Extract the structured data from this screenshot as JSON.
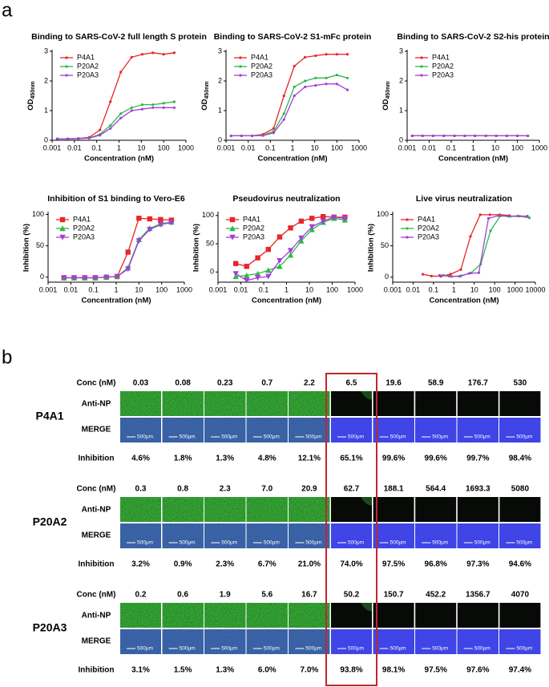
{
  "panel_labels": [
    "a",
    "b"
  ],
  "chart_data": [
    {
      "type": "line",
      "title": "Binding to SARS-CoV-2 full length S protein",
      "x_label": "Concentration (nM)",
      "y_label": {
        "main": "OD",
        "sub": "450nm"
      },
      "log_x": true,
      "xlim": [
        0.001,
        1000
      ],
      "xticks": [
        0.001,
        0.01,
        0.1,
        1,
        10,
        100,
        1000
      ],
      "ylim": [
        0,
        3
      ],
      "yticks": [
        0,
        1,
        2,
        3
      ],
      "legend": "upper left",
      "series": [
        {
          "name": "P4A1",
          "color": "#e8262a",
          "marker": "dot",
          "x": [
            0.0017,
            0.005,
            0.015,
            0.046,
            0.14,
            0.41,
            1.2,
            3.7,
            11,
            33,
            100,
            300
          ],
          "values": [
            0.05,
            0.05,
            0.06,
            0.1,
            0.35,
            1.3,
            2.3,
            2.8,
            2.9,
            2.95,
            2.9,
            2.95
          ]
        },
        {
          "name": "P20A2",
          "color": "#2db84a",
          "marker": "dot",
          "x": [
            0.0017,
            0.005,
            0.015,
            0.046,
            0.14,
            0.41,
            1.2,
            3.7,
            11,
            33,
            100,
            300
          ],
          "values": [
            0.05,
            0.05,
            0.06,
            0.08,
            0.2,
            0.5,
            0.9,
            1.1,
            1.2,
            1.2,
            1.25,
            1.3
          ]
        },
        {
          "name": "P20A3",
          "color": "#a43fd6",
          "marker": "dot",
          "x": [
            0.0017,
            0.005,
            0.015,
            0.046,
            0.14,
            0.41,
            1.2,
            3.7,
            11,
            33,
            100,
            300
          ],
          "values": [
            0.05,
            0.05,
            0.06,
            0.07,
            0.17,
            0.4,
            0.75,
            1.0,
            1.05,
            1.1,
            1.1,
            1.1
          ]
        }
      ]
    },
    {
      "type": "line",
      "title": "Binding to SARS-CoV-2 S1-mFc protein",
      "x_label": "Concentration (nM)",
      "y_label": {
        "main": "OD",
        "sub": "450nm"
      },
      "log_x": true,
      "xlim": [
        0.001,
        1000
      ],
      "xticks": [
        0.001,
        0.01,
        0.1,
        1,
        10,
        100,
        1000
      ],
      "ylim": [
        0,
        3
      ],
      "yticks": [
        0,
        1,
        2,
        3
      ],
      "legend": "upper left",
      "series": [
        {
          "name": "P4A1",
          "color": "#e8262a",
          "marker": "dot",
          "x": [
            0.0017,
            0.005,
            0.015,
            0.046,
            0.14,
            0.41,
            1.2,
            3.7,
            11,
            33,
            100,
            300
          ],
          "values": [
            0.15,
            0.15,
            0.15,
            0.2,
            0.4,
            1.5,
            2.5,
            2.8,
            2.85,
            2.9,
            2.9,
            2.9
          ]
        },
        {
          "name": "P20A2",
          "color": "#2db84a",
          "marker": "dot",
          "x": [
            0.0017,
            0.005,
            0.015,
            0.046,
            0.14,
            0.41,
            1.2,
            3.7,
            11,
            33,
            100,
            300
          ],
          "values": [
            0.15,
            0.15,
            0.15,
            0.17,
            0.3,
            0.9,
            1.8,
            2.0,
            2.1,
            2.1,
            2.2,
            2.1
          ]
        },
        {
          "name": "P20A3",
          "color": "#a43fd6",
          "marker": "dot",
          "x": [
            0.0017,
            0.005,
            0.015,
            0.046,
            0.14,
            0.41,
            1.2,
            3.7,
            11,
            33,
            100,
            300
          ],
          "values": [
            0.15,
            0.15,
            0.15,
            0.16,
            0.25,
            0.7,
            1.5,
            1.8,
            1.85,
            1.9,
            1.9,
            1.7
          ]
        }
      ]
    },
    {
      "type": "line",
      "title": "Binding to SARS-CoV-2 S2-his protein",
      "x_label": "Concentration (nM)",
      "y_label": {
        "main": "OD",
        "sub": "450nm"
      },
      "log_x": true,
      "xlim": [
        0.001,
        1000
      ],
      "xticks": [
        0.001,
        0.01,
        0.1,
        1,
        10,
        100,
        1000
      ],
      "ylim": [
        0,
        3
      ],
      "yticks": [
        0,
        1,
        2,
        3
      ],
      "legend": "upper left",
      "series": [
        {
          "name": "P4A1",
          "color": "#e8262a",
          "marker": "dot",
          "x": [
            0.0017,
            0.005,
            0.015,
            0.046,
            0.14,
            0.41,
            1.2,
            3.7,
            11,
            33,
            100,
            300
          ],
          "values": [
            0.15,
            0.15,
            0.15,
            0.15,
            0.15,
            0.15,
            0.15,
            0.15,
            0.15,
            0.15,
            0.15,
            0.15
          ]
        },
        {
          "name": "P20A2",
          "color": "#2db84a",
          "marker": "dot",
          "x": [
            0.0017,
            0.005,
            0.015,
            0.046,
            0.14,
            0.41,
            1.2,
            3.7,
            11,
            33,
            100,
            300
          ],
          "values": [
            0.15,
            0.15,
            0.15,
            0.15,
            0.15,
            0.15,
            0.15,
            0.15,
            0.15,
            0.15,
            0.15,
            0.15
          ]
        },
        {
          "name": "P20A3",
          "color": "#a43fd6",
          "marker": "dot",
          "x": [
            0.0017,
            0.005,
            0.015,
            0.046,
            0.14,
            0.41,
            1.2,
            3.7,
            11,
            33,
            100,
            300
          ],
          "values": [
            0.15,
            0.15,
            0.15,
            0.15,
            0.15,
            0.15,
            0.15,
            0.15,
            0.15,
            0.15,
            0.15,
            0.15
          ]
        }
      ]
    },
    {
      "type": "line",
      "title": "Inhibition of S1 binding to Vero-E6",
      "x_label": "Concentration (nM)",
      "y_label": "Inhibition (%)",
      "log_x": true,
      "xlim": [
        0.001,
        1000
      ],
      "xticks": [
        0.001,
        0.01,
        0.1,
        1,
        10,
        100,
        1000
      ],
      "ylim": [
        -8,
        102
      ],
      "yticks": [
        0,
        50,
        100
      ],
      "legend": "upper left",
      "series": [
        {
          "name": "P4A1",
          "color": "#e8262a",
          "marker": "square",
          "x": [
            0.005,
            0.014,
            0.041,
            0.12,
            0.37,
            1.1,
            3.3,
            10,
            30,
            90,
            270
          ],
          "values": [
            -1,
            -1,
            -1,
            -1,
            0,
            1,
            40,
            94,
            93,
            92,
            91
          ]
        },
        {
          "name": "P20A2",
          "color": "#2db84a",
          "marker": "triangle",
          "x": [
            0.005,
            0.014,
            0.041,
            0.12,
            0.37,
            1.1,
            3.3,
            10,
            30,
            90,
            270
          ],
          "values": [
            -1,
            -1,
            -1,
            -1,
            0,
            1,
            15,
            60,
            78,
            85,
            88
          ]
        },
        {
          "name": "P20A3",
          "color": "#a43fd6",
          "marker": "triangle-down",
          "x": [
            0.005,
            0.014,
            0.041,
            0.12,
            0.37,
            1.1,
            3.3,
            10,
            30,
            90,
            270
          ],
          "values": [
            -1,
            -1,
            -1,
            -1,
            0,
            1,
            13,
            58,
            76,
            84,
            87
          ]
        }
      ]
    },
    {
      "type": "line",
      "title": "Pseudovirus neutralization",
      "x_label": "Concentration (nM)",
      "y_label": "Inhibition (%)",
      "log_x": true,
      "xlim": [
        0.001,
        1000
      ],
      "xticks": [
        0.001,
        0.01,
        0.1,
        1,
        10,
        100,
        1000
      ],
      "ylim": [
        -18,
        104
      ],
      "yticks": [
        0,
        50,
        100
      ],
      "legend": "upper left",
      "series": [
        {
          "name": "P4A1",
          "color": "#e8262a",
          "marker": "square",
          "x": [
            0.006,
            0.018,
            0.055,
            0.16,
            0.5,
            1.5,
            4.4,
            13,
            40,
            120,
            360
          ],
          "values": [
            15,
            10,
            25,
            40,
            62,
            78,
            90,
            95,
            98,
            97,
            97
          ]
        },
        {
          "name": "P20A2",
          "color": "#2db84a",
          "marker": "triangle",
          "x": [
            0.006,
            0.018,
            0.055,
            0.16,
            0.5,
            1.5,
            4.4,
            13,
            40,
            120,
            360
          ],
          "values": [
            -8,
            -6,
            -3,
            3,
            10,
            30,
            55,
            75,
            88,
            95,
            92
          ]
        },
        {
          "name": "P20A3",
          "color": "#a43fd6",
          "marker": "triangle-down",
          "x": [
            0.006,
            0.018,
            0.055,
            0.16,
            0.5,
            1.5,
            4.4,
            13,
            40,
            120,
            360
          ],
          "values": [
            -3,
            -15,
            -10,
            -8,
            20,
            38,
            60,
            80,
            90,
            97,
            95
          ]
        }
      ]
    },
    {
      "type": "line",
      "title": "Live virus neutralization",
      "x_label": "Concentration (nM)",
      "y_label": "Inhibition (%)",
      "log_x": true,
      "xlim": [
        0.001,
        10000
      ],
      "xticks": [
        0.001,
        0.01,
        0.1,
        1,
        10,
        100,
        1000,
        10000
      ],
      "ylim": [
        -8,
        102
      ],
      "yticks": [
        0,
        50,
        100
      ],
      "legend": "upper left",
      "series": [
        {
          "name": "P4A1",
          "color": "#e8262a",
          "marker": "dot",
          "x": [
            0.03,
            0.08,
            0.23,
            0.7,
            2.2,
            6.5,
            19.6,
            58.9,
            176.7,
            530
          ],
          "values": [
            4.6,
            1.8,
            1.3,
            4.8,
            12.1,
            65.1,
            99.6,
            99.6,
            99.7,
            98.4
          ]
        },
        {
          "name": "P20A2",
          "color": "#2db84a",
          "marker": "dot",
          "x": [
            0.3,
            0.8,
            2.3,
            7.0,
            20.9,
            62.7,
            188.1,
            564.4,
            1693.3,
            5080
          ],
          "values": [
            3.2,
            0.9,
            2.3,
            6.7,
            21.0,
            74.0,
            97.5,
            96.8,
            97.3,
            94.6
          ]
        },
        {
          "name": "P20A3",
          "color": "#a43fd6",
          "marker": "dot",
          "x": [
            0.2,
            0.6,
            1.9,
            5.6,
            16.7,
            50.2,
            150.7,
            452.2,
            1356.7,
            4070
          ],
          "values": [
            3.1,
            1.5,
            1.3,
            6.0,
            7.0,
            93.8,
            98.1,
            97.5,
            97.6,
            97.4
          ]
        }
      ]
    }
  ],
  "panel_b": {
    "row_labels": {
      "conc": "Conc (nM)",
      "anti": "Anti-NP",
      "merge": "MERGE",
      "inhibition": "Inhibition"
    },
    "scale_bar": "500μm",
    "groups": [
      {
        "name": "P4A1",
        "conc": [
          "0.03",
          "0.08",
          "0.23",
          "0.7",
          "2.2",
          "6.5",
          "19.6",
          "58.9",
          "176.7",
          "530"
        ],
        "inhibition": [
          "4.6%",
          "1.8%",
          "1.3%",
          "4.8%",
          "12.1%",
          "65.1%",
          "99.6%",
          "99.6%",
          "99.7%",
          "98.4%"
        ]
      },
      {
        "name": "P20A2",
        "conc": [
          "0.3",
          "0.8",
          "2.3",
          "7.0",
          "20.9",
          "62.7",
          "188.1",
          "564.4",
          "1693.3",
          "5080"
        ],
        "inhibition": [
          "3.2%",
          "0.9%",
          "2.3%",
          "6.7%",
          "21.0%",
          "74.0%",
          "97.5%",
          "96.8%",
          "97.3%",
          "94.6%"
        ]
      },
      {
        "name": "P20A3",
        "conc": [
          "0.2",
          "0.6",
          "1.9",
          "5.6",
          "16.7",
          "50.2",
          "150.7",
          "452.2",
          "1356.7",
          "4070"
        ],
        "inhibition": [
          "3.1%",
          "1.5%",
          "1.3%",
          "6.0%",
          "7.0%",
          "93.8%",
          "98.1%",
          "97.5%",
          "97.6%",
          "97.4%"
        ]
      }
    ]
  }
}
